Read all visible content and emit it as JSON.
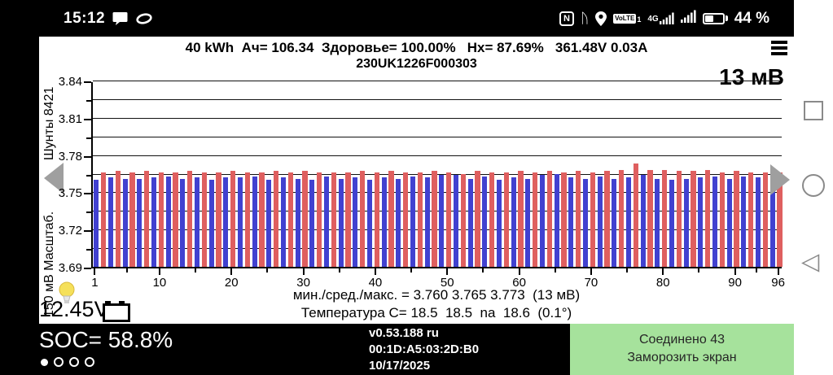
{
  "status_bar": {
    "time": "15:12",
    "nfc_label": "N",
    "volte_label": "VoLTE",
    "volte_sub": "1",
    "network_label": "4G",
    "battery_percent": "44 %"
  },
  "header": {
    "line1": "40 kWh  Ач= 106.34  Здоровье= 100.00%   Hx= 87.69%   361.48V 0.03A",
    "serial": "230UK1226F000303"
  },
  "chart": {
    "delta_label": "13 мВ",
    "axis_label_top": "Шунты 8421",
    "axis_label_bottom": "150 мВ Масштаб.",
    "stats_line": "мин./сред./макс. = 3.760 3.765 3.773  (13 мВ)",
    "temp_line": "Температура C= 18.5  18.5  na  18.6  (0.1°)"
  },
  "chart_data": {
    "type": "bar",
    "title": "",
    "xlabel": "",
    "ylabel": "",
    "n_cells": 96,
    "ylim": [
      3.69,
      3.84
    ],
    "ytick_major": [
      3.69,
      3.72,
      3.75,
      3.78,
      3.81,
      3.84
    ],
    "ytick_minor": [
      3.705,
      3.735,
      3.765,
      3.795,
      3.825
    ],
    "gridlines": [
      3.705,
      3.72,
      3.735,
      3.75,
      3.765,
      3.78,
      3.795,
      3.81,
      3.825,
      3.84
    ],
    "x_tick_cells": [
      1,
      10,
      20,
      30,
      40,
      50,
      60,
      70,
      80,
      90,
      96
    ],
    "bar_colors": {
      "odd_cells": "#4141d0",
      "even_cells": "#df5f5f"
    },
    "stats": {
      "min": 3.76,
      "avg": 3.765,
      "max": 3.773,
      "delta_mv": 13
    },
    "temperatures": {
      "t1": 18.5,
      "t2": 18.5,
      "t3": 18.6,
      "spread": "0.1°"
    },
    "values": [
      3.76,
      3.766,
      3.762,
      3.767,
      3.761,
      3.766,
      3.761,
      3.767,
      3.762,
      3.766,
      3.763,
      3.766,
      3.761,
      3.767,
      3.762,
      3.766,
      3.76,
      3.766,
      3.762,
      3.767,
      3.762,
      3.766,
      3.763,
      3.766,
      3.76,
      3.767,
      3.762,
      3.766,
      3.761,
      3.767,
      3.76,
      3.766,
      3.763,
      3.766,
      3.761,
      3.766,
      3.762,
      3.767,
      3.76,
      3.766,
      3.762,
      3.767,
      3.761,
      3.766,
      3.763,
      3.766,
      3.762,
      3.767,
      3.764,
      3.766,
      3.764,
      3.765,
      3.761,
      3.767,
      3.763,
      3.766,
      3.76,
      3.766,
      3.762,
      3.767,
      3.761,
      3.766,
      3.764,
      3.767,
      3.765,
      3.766,
      3.762,
      3.767,
      3.761,
      3.766,
      3.763,
      3.767,
      3.761,
      3.768,
      3.762,
      3.773,
      3.764,
      3.768,
      3.761,
      3.768,
      3.76,
      3.767,
      3.761,
      3.767,
      3.762,
      3.768,
      3.763,
      3.766,
      3.761,
      3.767,
      3.763,
      3.766,
      3.762,
      3.766,
      3.761,
      3.766
    ]
  },
  "aux": {
    "voltage": "12.45V"
  },
  "footer": {
    "soc": "SOC= 58.8%",
    "version": "v0.53.188 ru",
    "mac": "00:1D:A5:03:2D:B0",
    "date": "10/17/2025",
    "connected": "Соединено 43",
    "freeze": "Заморозить экран"
  }
}
